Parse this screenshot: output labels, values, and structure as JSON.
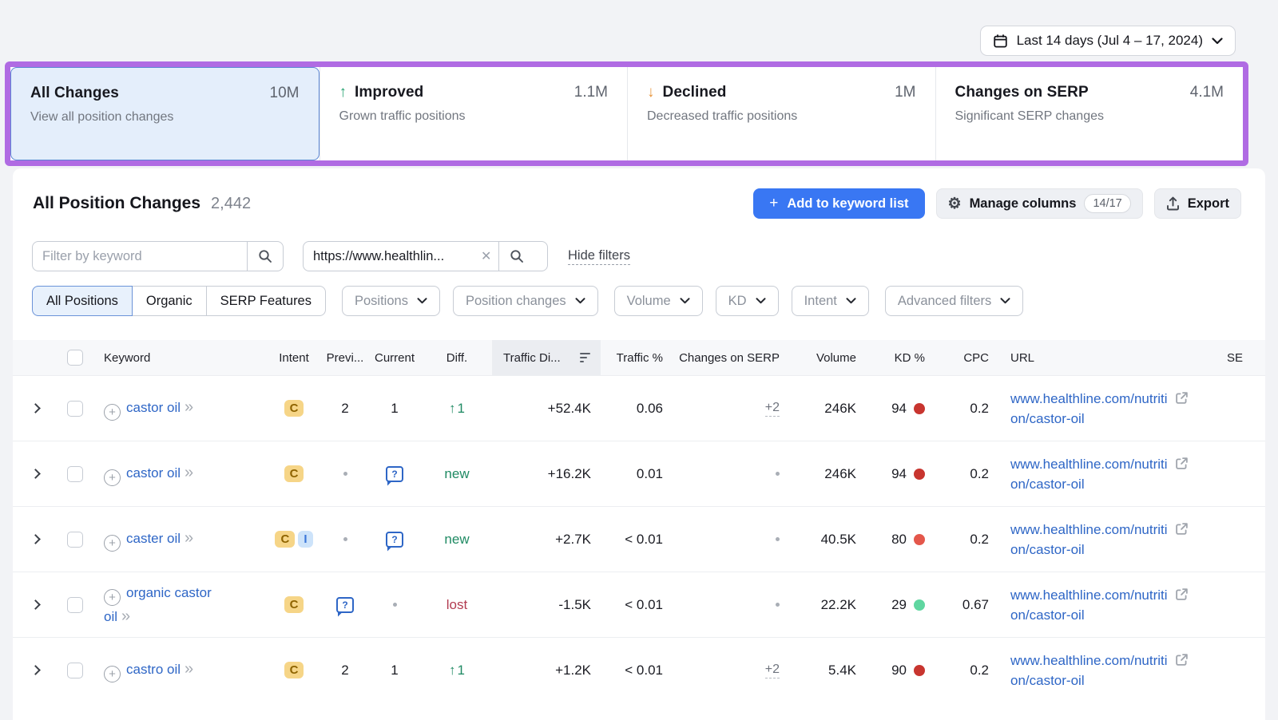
{
  "date_selector": {
    "label": "Last 14 days (Jul 4 – 17, 2024)"
  },
  "summary_cards": [
    {
      "title": "All Changes",
      "value": "10M",
      "subtitle": "View all position changes",
      "arrow": "none",
      "selected": true
    },
    {
      "title": "Improved",
      "value": "1.1M",
      "subtitle": "Grown traffic positions",
      "arrow": "up",
      "selected": false
    },
    {
      "title": "Declined",
      "value": "1M",
      "subtitle": "Decreased traffic positions",
      "arrow": "down",
      "selected": false
    },
    {
      "title": "Changes on SERP",
      "value": "4.1M",
      "subtitle": "Significant SERP changes",
      "arrow": "none",
      "selected": false
    }
  ],
  "panel": {
    "title": "All Position Changes",
    "count": "2,442",
    "add_button_label": "Add to keyword list",
    "manage_columns_label": "Manage columns",
    "columns_badge": "14/17",
    "export_label": "Export"
  },
  "filters": {
    "keyword_placeholder": "Filter by keyword",
    "url_value": "https://www.healthlin...",
    "hide_filters_label": "Hide filters",
    "segments": [
      "All Positions",
      "Organic",
      "SERP Features"
    ],
    "selected_segment": "All Positions",
    "dropdowns": [
      "Positions",
      "Position changes",
      "Volume",
      "KD",
      "Intent",
      "Advanced filters"
    ]
  },
  "table": {
    "headers": [
      "Keyword",
      "Intent",
      "Previ...",
      "Current",
      "Diff.",
      "Traffic Di...",
      "Traffic %",
      "Changes on SERP",
      "Volume",
      "KD %",
      "CPC",
      "URL",
      "SE"
    ],
    "sorted_column": "Traffic Di...",
    "rows": [
      {
        "keyword": "castor oil",
        "intents": [
          {
            "label": "C",
            "bg": "#f6d587",
            "fg": "#8f6400"
          }
        ],
        "previous": {
          "type": "num",
          "value": "2"
        },
        "current": {
          "type": "num",
          "value": "1"
        },
        "diff": {
          "type": "up",
          "value": "1"
        },
        "traffic_diff": "+52.4K",
        "traffic_pct": "0.06",
        "serp_changes": {
          "type": "link",
          "value": "+2"
        },
        "volume": "246K",
        "kd": {
          "value": "94",
          "color": "#c8352f"
        },
        "cpc": "0.2",
        "url": "www.healthline.com/nutrition/castor-oil"
      },
      {
        "keyword": "castor oil",
        "intents": [
          {
            "label": "C",
            "bg": "#f6d587",
            "fg": "#8f6400"
          }
        ],
        "previous": {
          "type": "dot"
        },
        "current": {
          "type": "question"
        },
        "diff": {
          "type": "new",
          "value": "new"
        },
        "traffic_diff": "+16.2K",
        "traffic_pct": "0.01",
        "serp_changes": {
          "type": "dot"
        },
        "volume": "246K",
        "kd": {
          "value": "94",
          "color": "#c8352f"
        },
        "cpc": "0.2",
        "url": "www.healthline.com/nutrition/castor-oil"
      },
      {
        "keyword": "caster oil",
        "intents": [
          {
            "label": "C",
            "bg": "#f6d587",
            "fg": "#8f6400"
          },
          {
            "label": "I",
            "bg": "#cde3fa",
            "fg": "#3b77d9"
          }
        ],
        "previous": {
          "type": "dot"
        },
        "current": {
          "type": "question"
        },
        "diff": {
          "type": "new",
          "value": "new"
        },
        "traffic_diff": "+2.7K",
        "traffic_pct": "< 0.01",
        "serp_changes": {
          "type": "dot"
        },
        "volume": "40.5K",
        "kd": {
          "value": "80",
          "color": "#e4574b"
        },
        "cpc": "0.2",
        "url": "www.healthline.com/nutrition/castor-oil"
      },
      {
        "keyword": "organic castor oil",
        "intents": [
          {
            "label": "C",
            "bg": "#f6d587",
            "fg": "#8f6400"
          }
        ],
        "previous": {
          "type": "question"
        },
        "current": {
          "type": "dot"
        },
        "diff": {
          "type": "lost",
          "value": "lost"
        },
        "traffic_diff": "-1.5K",
        "traffic_pct": "< 0.01",
        "serp_changes": {
          "type": "dot"
        },
        "volume": "22.2K",
        "kd": {
          "value": "29",
          "color": "#5fd6a0"
        },
        "cpc": "0.67",
        "url": "www.healthline.com/nutrition/castor-oil"
      },
      {
        "keyword": "castro oil",
        "intents": [
          {
            "label": "C",
            "bg": "#f6d587",
            "fg": "#8f6400"
          }
        ],
        "previous": {
          "type": "num",
          "value": "2"
        },
        "current": {
          "type": "num",
          "value": "1"
        },
        "diff": {
          "type": "up",
          "value": "1"
        },
        "traffic_diff": "+1.2K",
        "traffic_pct": "< 0.01",
        "serp_changes": {
          "type": "link",
          "value": "+2"
        },
        "volume": "5.4K",
        "kd": {
          "value": "90",
          "color": "#c8352f"
        },
        "cpc": "0.2",
        "url": "www.healthline.com/nutrition/castor-oil"
      }
    ]
  },
  "colors": {
    "highlight_frame": "#b06be3",
    "primary_button": "#3977f3",
    "selected_card_bg": "#e4eefb",
    "selected_card_border": "#5b85d3",
    "link_blue": "#2e66c6",
    "positive_green": "#1f8a63",
    "negative_red": "#b23b50",
    "improved_arrow": "#2aa473",
    "declined_arrow": "#e8963f"
  }
}
